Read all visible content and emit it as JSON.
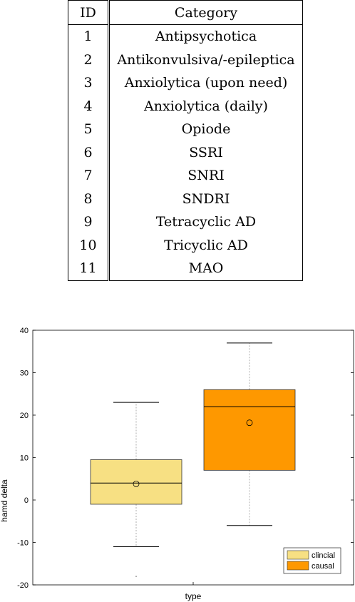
{
  "table": {
    "headers": [
      "ID",
      "Category"
    ],
    "rows": [
      [
        "1",
        "Antipsychotica"
      ],
      [
        "2",
        "Antikonvulsiva/-epileptica"
      ],
      [
        "3",
        "Anxiolytica (upon need)"
      ],
      [
        "4",
        "Anxiolytica (daily)"
      ],
      [
        "5",
        "Opiode"
      ],
      [
        "6",
        "SSRI"
      ],
      [
        "7",
        "SNRI"
      ],
      [
        "8",
        "SNDRI"
      ],
      [
        "9",
        "Tetracyclic AD"
      ],
      [
        "10",
        "Tricyclic AD"
      ],
      [
        "11",
        "MAO"
      ]
    ]
  },
  "chart_data": {
    "type": "boxplot",
    "xlabel": "type",
    "ylabel": "hamd delta",
    "ylim": [
      -20,
      40
    ],
    "yticks": [
      -20,
      -10,
      0,
      10,
      20,
      30,
      40
    ],
    "grid": false,
    "legend_position": "bottom-right",
    "series": [
      {
        "name": "clincial",
        "color": "#f7e083",
        "whisker_low": -11,
        "q1": -1,
        "median": 4,
        "q3": 9.5,
        "whisker_high": 23,
        "mean": 3.8,
        "outliers": [
          -18
        ]
      },
      {
        "name": "causal",
        "color": "#fe9800",
        "whisker_low": -6,
        "q1": 7,
        "median": 22,
        "q3": 26,
        "whisker_high": 37,
        "mean": 18.2,
        "outliers": []
      }
    ]
  }
}
